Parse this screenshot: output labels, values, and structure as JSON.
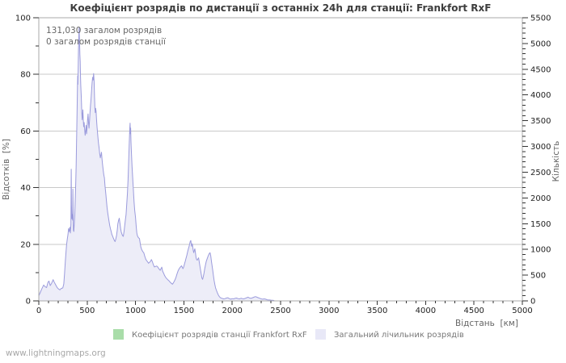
{
  "watermark": "www.lightningmaps.org",
  "annotation": {
    "total_strikes": "131,030 загалом розрядів",
    "station_strikes": "0 загалом розрядів станції"
  },
  "colors": {
    "line": "#9b9bdc",
    "area_fill": "#ededf8",
    "grid": "#c9c9c9",
    "frame": "#a9a9a9",
    "tick": "#333333",
    "tick_text": "#222222"
  },
  "chart_data": {
    "type": "area",
    "title": "Коефіцієнт розрядів по дистанції з останніх 24h для станції: Frankfort RxF",
    "xlabel": "Відстань  [км]",
    "ylabel_left": "Відсотків  [%]",
    "ylabel_right": "Кількість",
    "xlim": [
      0,
      5000
    ],
    "x_tick_step": 500,
    "x_minor_step": 100,
    "ylim_left": [
      0,
      100
    ],
    "y_left_tick_step": 20,
    "y_left_minor_step": 10,
    "ylim_right": [
      0,
      5500
    ],
    "y_right_tick_step": 500,
    "y_right_minor_step": 100,
    "grid": "horizontal-major-only",
    "legend_position": "bottom-center",
    "series": [
      {
        "name": "Коефіцієнт розрядів станції Frankfort RxF",
        "color": "#a9dda9",
        "swatch_color": "#a9dda9",
        "fill": false,
        "points_percent": [
          [
            0,
            0
          ],
          [
            2435,
            0
          ]
        ]
      },
      {
        "name": "Загальний лічильник розрядів",
        "color": "#9b9bdc",
        "swatch_color": "#e8e8f7",
        "fill": true,
        "fill_color": "#ededf8",
        "points_percent": [
          [
            0,
            1.8
          ],
          [
            15,
            3.0
          ],
          [
            30,
            4.2
          ],
          [
            50,
            5.6
          ],
          [
            65,
            5.0
          ],
          [
            80,
            4.7
          ],
          [
            95,
            6.6
          ],
          [
            105,
            7.0
          ],
          [
            118,
            5.4
          ],
          [
            132,
            6.2
          ],
          [
            148,
            7.5
          ],
          [
            160,
            6.6
          ],
          [
            172,
            5.8
          ],
          [
            190,
            4.7
          ],
          [
            205,
            4.2
          ],
          [
            218,
            3.9
          ],
          [
            232,
            4.4
          ],
          [
            248,
            4.6
          ],
          [
            258,
            6.0
          ],
          [
            266,
            9.5
          ],
          [
            274,
            14.0
          ],
          [
            282,
            17.5
          ],
          [
            288,
            20.0
          ],
          [
            295,
            22.0
          ],
          [
            302,
            23.5
          ],
          [
            308,
            25.5
          ],
          [
            314,
            24.5
          ],
          [
            320,
            26.0
          ],
          [
            326,
            24.0
          ],
          [
            332,
            27.0
          ],
          [
            335,
            46.5
          ],
          [
            338,
            34.0
          ],
          [
            341,
            29.0
          ],
          [
            346,
            30.5
          ],
          [
            350,
            28.5
          ],
          [
            352,
            39.5
          ],
          [
            355,
            31.0
          ],
          [
            358,
            25.0
          ],
          [
            362,
            24.5
          ],
          [
            367,
            27.5
          ],
          [
            372,
            30.5
          ],
          [
            377,
            36.0
          ],
          [
            382,
            42.0
          ],
          [
            386,
            48.0
          ],
          [
            390,
            55.0
          ],
          [
            394,
            63.0
          ],
          [
            397,
            70.0
          ],
          [
            400,
            76.0
          ],
          [
            402,
            79.5
          ],
          [
            404,
            76.5
          ],
          [
            407,
            82.0
          ],
          [
            410,
            88.0
          ],
          [
            413,
            93.0
          ],
          [
            416,
            96.5
          ],
          [
            419,
            94.0
          ],
          [
            422,
            90.5
          ],
          [
            425,
            87.0
          ],
          [
            428,
            84.5
          ],
          [
            431,
            80.0
          ],
          [
            434,
            76.0
          ],
          [
            437,
            73.5
          ],
          [
            440,
            71.5
          ],
          [
            444,
            67.0
          ],
          [
            448,
            64.0
          ],
          [
            452,
            65.5
          ],
          [
            456,
            67.5
          ],
          [
            460,
            64.0
          ],
          [
            464,
            61.5
          ],
          [
            469,
            63.0
          ],
          [
            474,
            60.5
          ],
          [
            479,
            58.5
          ],
          [
            484,
            60.0
          ],
          [
            489,
            62.0
          ],
          [
            494,
            59.0
          ],
          [
            499,
            61.5
          ],
          [
            504,
            64.0
          ],
          [
            509,
            66.0
          ],
          [
            514,
            63.0
          ],
          [
            519,
            61.0
          ],
          [
            524,
            63.5
          ],
          [
            529,
            66.5
          ],
          [
            534,
            69.0
          ],
          [
            539,
            71.0
          ],
          [
            545,
            74.0
          ],
          [
            551,
            77.0
          ],
          [
            557,
            79.0
          ],
          [
            562,
            78.0
          ],
          [
            567,
            80.3
          ],
          [
            572,
            77.5
          ],
          [
            576,
            72.0
          ],
          [
            580,
            68.0
          ],
          [
            584,
            66.5
          ],
          [
            588,
            68.0
          ],
          [
            592,
            67.0
          ],
          [
            597,
            64.0
          ],
          [
            602,
            61.5
          ],
          [
            607,
            59.5
          ],
          [
            612,
            57.5
          ],
          [
            618,
            55.5
          ],
          [
            624,
            54.0
          ],
          [
            630,
            52.0
          ],
          [
            636,
            50.5
          ],
          [
            642,
            51.5
          ],
          [
            648,
            52.5
          ],
          [
            654,
            50.0
          ],
          [
            660,
            48.0
          ],
          [
            666,
            46.0
          ],
          [
            672,
            44.5
          ],
          [
            678,
            43.5
          ],
          [
            685,
            40.5
          ],
          [
            692,
            38.0
          ],
          [
            699,
            35.5
          ],
          [
            706,
            33.0
          ],
          [
            713,
            31.0
          ],
          [
            720,
            29.5
          ],
          [
            727,
            28.0
          ],
          [
            734,
            26.5
          ],
          [
            741,
            25.5
          ],
          [
            748,
            24.5
          ],
          [
            755,
            23.5
          ],
          [
            762,
            23.0
          ],
          [
            769,
            22.3
          ],
          [
            776,
            21.8
          ],
          [
            783,
            21.2
          ],
          [
            790,
            21.0
          ],
          [
            797,
            22.0
          ],
          [
            804,
            23.2
          ],
          [
            811,
            25.0
          ],
          [
            818,
            27.3
          ],
          [
            825,
            28.5
          ],
          [
            832,
            29.2
          ],
          [
            839,
            27.5
          ],
          [
            846,
            25.5
          ],
          [
            853,
            24.3
          ],
          [
            860,
            23.5
          ],
          [
            867,
            23.0
          ],
          [
            874,
            22.8
          ],
          [
            881,
            24.5
          ],
          [
            888,
            26.5
          ],
          [
            895,
            28.5
          ],
          [
            902,
            30.5
          ],
          [
            909,
            34.0
          ],
          [
            916,
            38.0
          ],
          [
            923,
            43.0
          ],
          [
            930,
            50.0
          ],
          [
            936,
            56.0
          ],
          [
            941,
            61.0
          ],
          [
            944,
            62.8
          ],
          [
            947,
            59.0
          ],
          [
            950,
            61.0
          ],
          [
            953,
            56.0
          ],
          [
            958,
            52.0
          ],
          [
            964,
            47.5
          ],
          [
            971,
            43.5
          ],
          [
            978,
            39.0
          ],
          [
            985,
            35.0
          ],
          [
            992,
            32.0
          ],
          [
            1000,
            29.5
          ],
          [
            1007,
            26.5
          ],
          [
            1013,
            24.0
          ],
          [
            1020,
            23.0
          ],
          [
            1027,
            22.5
          ],
          [
            1034,
            22.2
          ],
          [
            1041,
            22.0
          ],
          [
            1048,
            20.5
          ],
          [
            1055,
            19.0
          ],
          [
            1065,
            18.0
          ],
          [
            1075,
            17.4
          ],
          [
            1085,
            17.0
          ],
          [
            1095,
            15.8
          ],
          [
            1105,
            14.8
          ],
          [
            1115,
            14.2
          ],
          [
            1125,
            13.8
          ],
          [
            1135,
            13.3
          ],
          [
            1145,
            13.6
          ],
          [
            1155,
            14.0
          ],
          [
            1165,
            14.6
          ],
          [
            1175,
            13.8
          ],
          [
            1185,
            12.8
          ],
          [
            1195,
            12.0
          ],
          [
            1205,
            12.1
          ],
          [
            1215,
            12.3
          ],
          [
            1225,
            12.2
          ],
          [
            1235,
            11.7
          ],
          [
            1245,
            11.2
          ],
          [
            1255,
            10.8
          ],
          [
            1265,
            11.5
          ],
          [
            1272,
            11.9
          ],
          [
            1280,
            10.5
          ],
          [
            1290,
            9.8
          ],
          [
            1300,
            9.0
          ],
          [
            1310,
            8.4
          ],
          [
            1322,
            7.9
          ],
          [
            1334,
            7.5
          ],
          [
            1346,
            7.1
          ],
          [
            1358,
            6.6
          ],
          [
            1370,
            6.2
          ],
          [
            1382,
            5.9
          ],
          [
            1394,
            6.5
          ],
          [
            1406,
            7.3
          ],
          [
            1418,
            8.3
          ],
          [
            1430,
            9.6
          ],
          [
            1442,
            10.8
          ],
          [
            1454,
            11.5
          ],
          [
            1465,
            12.0
          ],
          [
            1477,
            12.4
          ],
          [
            1484,
            11.8
          ],
          [
            1491,
            11.4
          ],
          [
            1498,
            12.0
          ],
          [
            1506,
            13.0
          ],
          [
            1514,
            14.0
          ],
          [
            1522,
            15.0
          ],
          [
            1530,
            16.0
          ],
          [
            1538,
            17.2
          ],
          [
            1546,
            18.3
          ],
          [
            1554,
            19.3
          ],
          [
            1560,
            20.2
          ],
          [
            1566,
            21.0
          ],
          [
            1572,
            21.3
          ],
          [
            1577,
            19.8
          ],
          [
            1582,
            19.3
          ],
          [
            1587,
            20.2
          ],
          [
            1592,
            19.0
          ],
          [
            1597,
            17.8
          ],
          [
            1602,
            17.0
          ],
          [
            1608,
            17.8
          ],
          [
            1614,
            18.4
          ],
          [
            1620,
            16.8
          ],
          [
            1626,
            15.2
          ],
          [
            1632,
            14.6
          ],
          [
            1638,
            14.4
          ],
          [
            1645,
            14.8
          ],
          [
            1652,
            15.2
          ],
          [
            1659,
            13.8
          ],
          [
            1666,
            12.2
          ],
          [
            1673,
            10.8
          ],
          [
            1680,
            9.4
          ],
          [
            1687,
            8.0
          ],
          [
            1694,
            7.6
          ],
          [
            1700,
            8.4
          ],
          [
            1708,
            9.8
          ],
          [
            1716,
            11.4
          ],
          [
            1724,
            12.8
          ],
          [
            1732,
            14.0
          ],
          [
            1740,
            14.8
          ],
          [
            1748,
            15.6
          ],
          [
            1756,
            16.2
          ],
          [
            1764,
            16.8
          ],
          [
            1771,
            17.0
          ],
          [
            1778,
            16.0
          ],
          [
            1785,
            14.0
          ],
          [
            1792,
            12.4
          ],
          [
            1799,
            10.6
          ],
          [
            1806,
            8.8
          ],
          [
            1813,
            7.2
          ],
          [
            1820,
            5.8
          ],
          [
            1828,
            4.6
          ],
          [
            1837,
            3.7
          ],
          [
            1846,
            2.9
          ],
          [
            1856,
            2.1
          ],
          [
            1865,
            1.6
          ],
          [
            1875,
            1.2
          ],
          [
            1885,
            1.0
          ],
          [
            1895,
            0.9
          ],
          [
            1910,
            0.7
          ],
          [
            1925,
            0.8
          ],
          [
            1940,
            1.0
          ],
          [
            1955,
            1.1
          ],
          [
            1970,
            0.8
          ],
          [
            1985,
            0.6
          ],
          [
            2000,
            0.8
          ],
          [
            2015,
            0.7
          ],
          [
            2030,
            0.9
          ],
          [
            2045,
            1.0
          ],
          [
            2060,
            0.8
          ],
          [
            2075,
            0.7
          ],
          [
            2090,
            0.9
          ],
          [
            2105,
            0.8
          ],
          [
            2120,
            0.7
          ],
          [
            2135,
            0.9
          ],
          [
            2150,
            1.1
          ],
          [
            2165,
            1.3
          ],
          [
            2180,
            1.0
          ],
          [
            2195,
            0.9
          ],
          [
            2210,
            1.1
          ],
          [
            2225,
            1.3
          ],
          [
            2240,
            1.5
          ],
          [
            2255,
            1.3
          ],
          [
            2270,
            1.1
          ],
          [
            2285,
            0.9
          ],
          [
            2300,
            0.7
          ],
          [
            2315,
            0.6
          ],
          [
            2330,
            0.7
          ],
          [
            2345,
            0.6
          ],
          [
            2360,
            0.4
          ],
          [
            2375,
            0.3
          ],
          [
            2390,
            0.3
          ],
          [
            2405,
            0.2
          ],
          [
            2420,
            0.2
          ],
          [
            2435,
            0.1
          ]
        ]
      }
    ]
  }
}
